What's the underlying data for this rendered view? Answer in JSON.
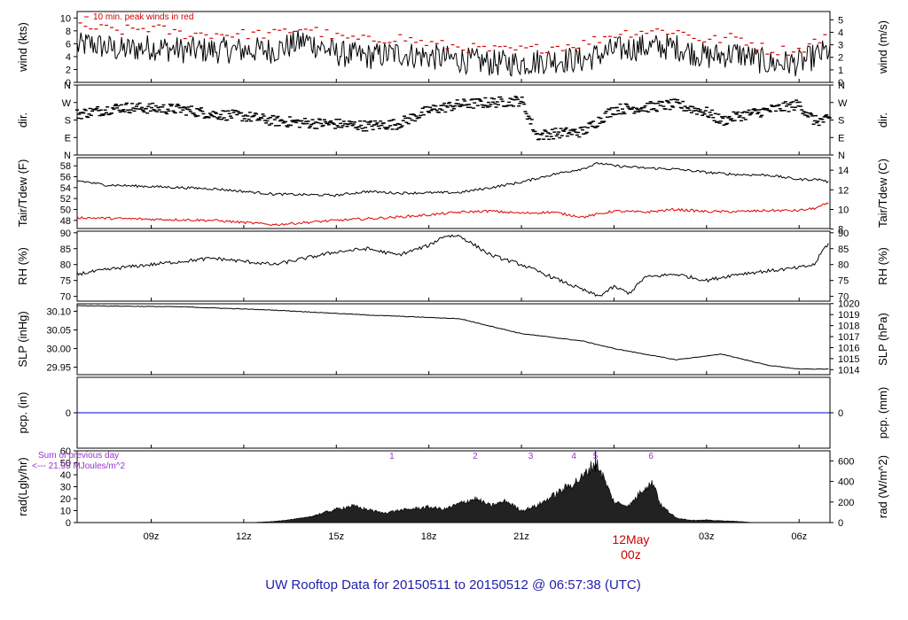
{
  "figure": {
    "title": "UW Rooftop Data for 20150511  to  20150512 @ 06:57:38  (UTC)",
    "title_color": "#1f1fa8",
    "time_axis": {
      "range_hours": [
        6.6,
        31.0
      ],
      "tick_hours": [
        9,
        12,
        15,
        18,
        21,
        24,
        27,
        30
      ],
      "tick_labels": [
        "09z",
        "12z",
        "15z",
        "18z",
        "21z",
        "",
        "03z",
        "06z"
      ],
      "date_label_line1": "12May",
      "date_label_line2": "00z",
      "date_label_color": "#cc0000"
    },
    "colors": {
      "trace": "#000000",
      "peak": "#d40000",
      "dew": "#e00000",
      "pcp": "#0000cc",
      "purple": "#9933cc",
      "rad_fill": "#222222"
    }
  },
  "chart_data": [
    {
      "id": "wind",
      "type": "line",
      "ylabel_left": "wind (kts)",
      "ylabel_right": "wind (m/s)",
      "ylim": [
        0,
        11
      ],
      "yticks_left": [
        "0",
        "2",
        "4",
        "6",
        "8",
        "10"
      ],
      "yticks_right": [
        "0",
        "1",
        "2",
        "3",
        "4",
        "5"
      ],
      "annotation": "10 min. peak winds in red",
      "series": [
        {
          "x": [
            6.6,
            7,
            8,
            9,
            10,
            11,
            12,
            13,
            14,
            15,
            16,
            17,
            18,
            19,
            20,
            21,
            22,
            23,
            24,
            25,
            26,
            27,
            28,
            29,
            30,
            31
          ],
          "values": [
            5.5,
            6,
            5,
            5.5,
            5,
            5,
            5,
            5,
            6.5,
            4.5,
            4,
            4.5,
            4,
            3.5,
            3,
            3,
            3.5,
            3.5,
            5,
            5.5,
            5.5,
            4,
            4.5,
            3,
            3,
            5
          ]
        },
        {
          "name": "10 min. peak winds in red",
          "x": [
            7,
            8,
            9,
            10,
            11,
            12,
            13,
            14,
            15,
            16,
            17,
            18,
            19,
            20,
            21,
            22,
            23,
            24,
            25,
            26,
            27,
            28,
            29,
            30,
            31
          ],
          "values": [
            8.5,
            8,
            8.5,
            7.5,
            7.5,
            7.5,
            7.5,
            8.5,
            7,
            6.5,
            7,
            6,
            5.5,
            5,
            5,
            5.5,
            6,
            7.5,
            8,
            8,
            6.5,
            7,
            5,
            5,
            7.5
          ]
        }
      ]
    },
    {
      "id": "dir",
      "type": "scatter",
      "ylabel_left": "dir.",
      "ylabel_right": "dir.",
      "ylim": [
        0,
        360
      ],
      "yticks_left": [
        "N",
        "E",
        "S",
        "W",
        "N"
      ],
      "yticks_right": [
        "N",
        "E",
        "S",
        "W",
        "N"
      ],
      "x": [
        6.6,
        8,
        9,
        10,
        11,
        12,
        13,
        14,
        15,
        16,
        17,
        18,
        19,
        20,
        21,
        21.5,
        22,
        23,
        24,
        25,
        26,
        27,
        27.5,
        28,
        29,
        30,
        30.5,
        31
      ],
      "values": [
        210,
        245,
        240,
        235,
        210,
        200,
        175,
        165,
        160,
        150,
        160,
        230,
        260,
        270,
        280,
        100,
        110,
        120,
        235,
        245,
        260,
        220,
        175,
        200,
        230,
        260,
        175,
        180
      ]
    },
    {
      "id": "temp",
      "type": "line",
      "ylabel_left": "Tair/Tdew (F)",
      "ylabel_right": "Tair/Tdew (C)",
      "ylim": [
        46.5,
        59.5
      ],
      "yticks_left": [
        "48",
        "50",
        "52",
        "54",
        "56",
        "58"
      ],
      "yticks_right": [
        "8",
        "10",
        "12",
        "14"
      ],
      "series": [
        {
          "name": "Tair",
          "x": [
            6.6,
            7.5,
            9,
            11,
            13,
            15,
            16,
            17,
            19,
            20,
            21,
            22,
            23,
            23.5,
            24,
            25,
            26,
            27,
            28,
            29,
            30,
            30.7,
            31
          ],
          "values": [
            55.3,
            54.5,
            54.2,
            53.8,
            52.8,
            52.6,
            53.3,
            53.0,
            53.1,
            54.0,
            55.0,
            56.4,
            57.5,
            58.5,
            58.0,
            57.6,
            57.4,
            56.8,
            56.4,
            56.3,
            55.5,
            55.5,
            54.9
          ]
        },
        {
          "name": "Tdew",
          "x": [
            6.6,
            9,
            11,
            13,
            14,
            15,
            16,
            17,
            18,
            19,
            20,
            21,
            22,
            23,
            24,
            25,
            26,
            27,
            28,
            29,
            30,
            30.5,
            31
          ],
          "values": [
            48.5,
            48.2,
            48.0,
            47.2,
            47.6,
            48.0,
            48.3,
            48.6,
            49.0,
            49.5,
            49.7,
            49.3,
            49.5,
            48.6,
            49.7,
            49.5,
            50.0,
            49.6,
            49.6,
            49.8,
            49.8,
            50.2,
            51.2
          ]
        }
      ]
    },
    {
      "id": "rh",
      "type": "line",
      "ylabel_left": "RH (%)",
      "ylabel_right": "RH (%)",
      "ylim": [
        68.5,
        90.5
      ],
      "yticks_left": [
        "70",
        "75",
        "80",
        "85",
        "90"
      ],
      "yticks_right": [
        "70",
        "75",
        "80",
        "85",
        "90"
      ],
      "x": [
        6.6,
        8,
        9,
        10,
        11,
        12,
        13,
        14,
        15,
        16,
        17,
        18,
        18.5,
        19,
        20,
        21,
        22,
        23,
        23.5,
        24,
        24.5,
        25,
        26,
        27,
        28,
        29,
        30,
        30.5,
        30.8,
        31
      ],
      "values": [
        77,
        79,
        80,
        81,
        82,
        81,
        80,
        82,
        84,
        85,
        83,
        86,
        89,
        89,
        83,
        80,
        76,
        72,
        70,
        73,
        71,
        76,
        77,
        75,
        77,
        78,
        79,
        80,
        85,
        87
      ]
    },
    {
      "id": "slp",
      "type": "line",
      "ylabel_left": "SLP (inHg)",
      "ylabel_right": "SLP (hPa)",
      "ylim": [
        29.93,
        30.12
      ],
      "yticks_left": [
        "29.95",
        "30.00",
        "30.05",
        "30.10"
      ],
      "yticks_right": [
        "1014",
        "1015",
        "1016",
        "1017",
        "1018",
        "1019",
        "1020"
      ],
      "x": [
        6.6,
        10,
        13,
        16,
        19,
        20,
        21,
        22,
        23,
        24,
        25,
        26,
        27,
        27.5,
        28,
        29,
        30,
        31
      ],
      "values": [
        30.115,
        30.112,
        30.103,
        30.09,
        30.08,
        30.06,
        30.04,
        30.03,
        30.02,
        30.0,
        29.985,
        29.97,
        29.98,
        29.985,
        29.975,
        29.955,
        29.945,
        29.945
      ]
    },
    {
      "id": "pcp",
      "type": "line",
      "ylabel_left": "pcp. (in)",
      "ylabel_right": "pcp. (mm)",
      "ylim": [
        -1,
        1
      ],
      "yticks_left": [
        "0"
      ],
      "yticks_right": [
        "0"
      ],
      "x": [
        6.6,
        31
      ],
      "values": [
        0,
        0
      ]
    },
    {
      "id": "rad",
      "type": "area",
      "ylabel_left": "rad(Lgly/hr)",
      "ylabel_right": "rad (W/m^2)",
      "ylim": [
        0,
        60
      ],
      "yticks_left": [
        "0",
        "10",
        "20",
        "30",
        "40",
        "50",
        "60"
      ],
      "yticks_right": [
        "0",
        "200",
        "400",
        "600"
      ],
      "note_line1": "Sum of previous day",
      "note_line2": "<--- 21.93 MJoules/m^2",
      "markers": [
        "1",
        "2",
        "3",
        "4",
        "5",
        "6"
      ],
      "marker_x": [
        16.8,
        19.5,
        21.3,
        22.7,
        23.4,
        25.2
      ],
      "x": [
        12.3,
        13,
        14,
        15,
        15.5,
        16,
        16.5,
        17,
        18,
        18.5,
        19,
        19.5,
        20,
        20.5,
        21,
        21.5,
        22,
        22.5,
        23,
        23.2,
        23.4,
        23.5,
        24,
        24.5,
        25,
        25.3,
        25.5,
        26,
        26.5,
        27,
        28,
        28.5
      ],
      "values": [
        0,
        1,
        4,
        11,
        14,
        11,
        8,
        10,
        13,
        11,
        16,
        20,
        14,
        18,
        10,
        14,
        22,
        30,
        38,
        45,
        50,
        47,
        17,
        14,
        30,
        33,
        15,
        4,
        2,
        2,
        1,
        0
      ]
    }
  ]
}
